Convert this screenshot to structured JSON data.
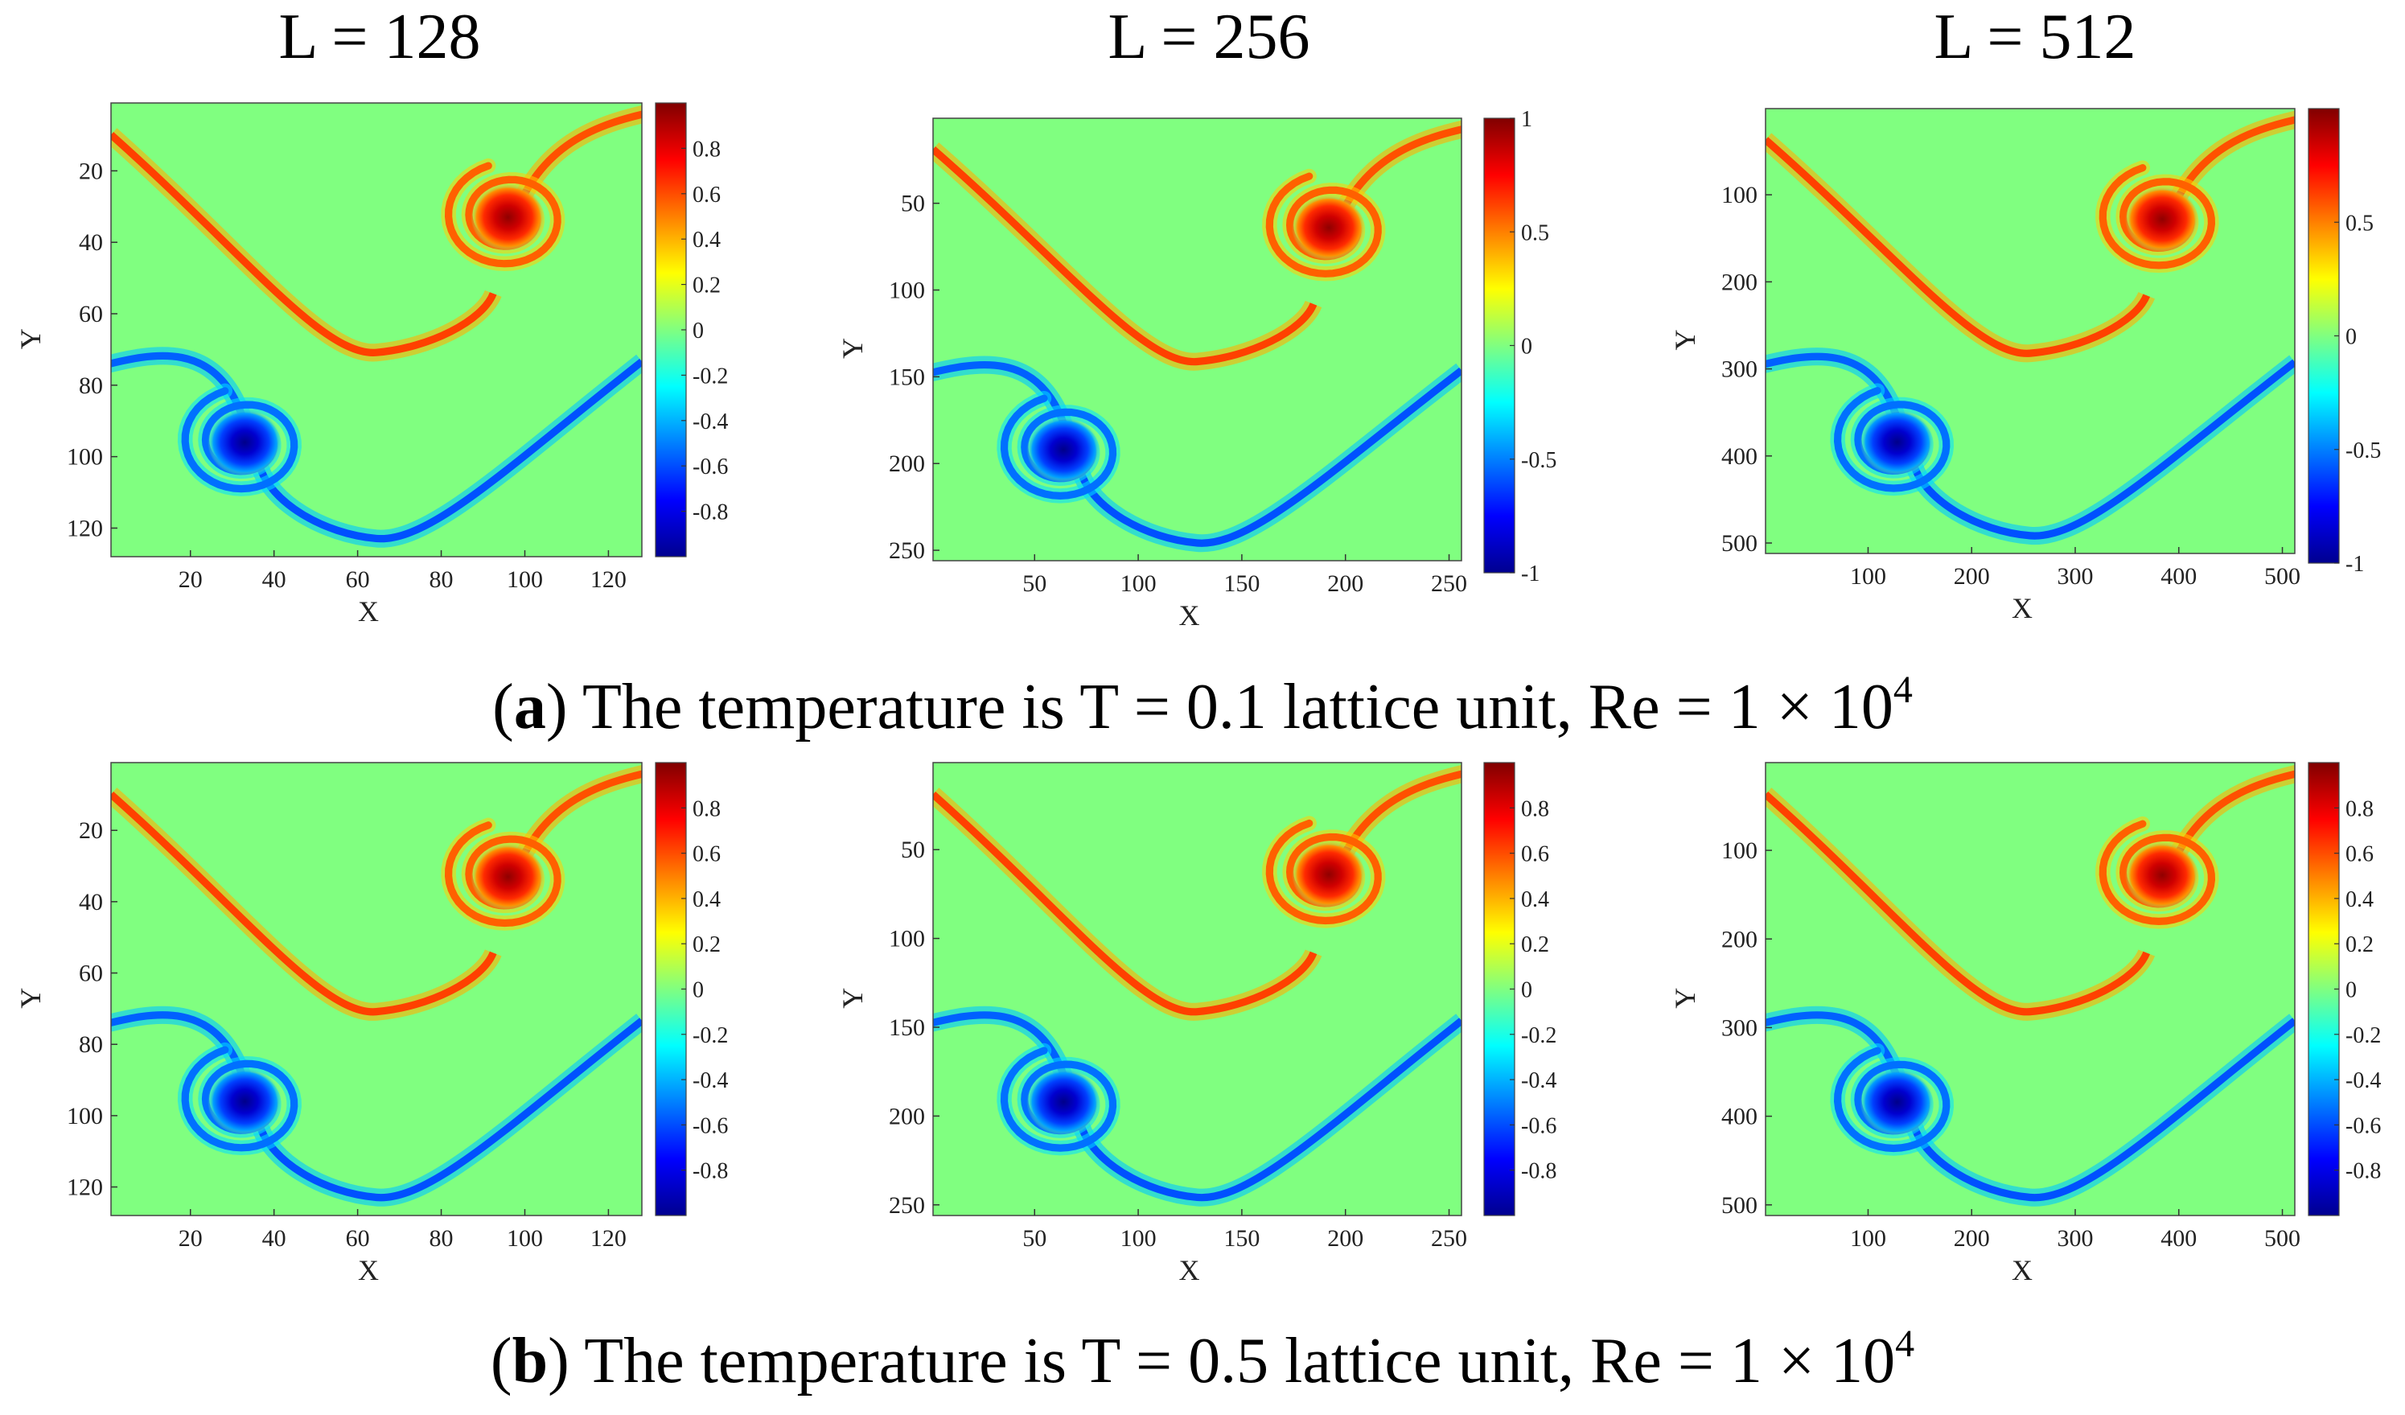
{
  "figure": {
    "column_headers": [
      "L = 128",
      "L = 256",
      "L = 512"
    ],
    "rows": [
      {
        "label": "a",
        "text": "The temperature is T = 0.1 lattice unit, Re = 1 × 10",
        "exponent": "4"
      },
      {
        "label": "b",
        "text": "The temperature is T = 0.5 lattice unit, Re = 1 × 10",
        "exponent": "4"
      }
    ]
  },
  "colors": {
    "background_field": "#80ff80",
    "colormap": [
      "#00008f",
      "#0000ff",
      "#00ffff",
      "#80ff80",
      "#ffff00",
      "#ff0000",
      "#800000"
    ]
  },
  "chart_data": [
    {
      "type": "heatmap",
      "panel": "a-128",
      "xlabel": "X",
      "ylabel": "Y",
      "xlim": [
        1,
        128
      ],
      "ylim": [
        1,
        128
      ],
      "xticks": [
        "20",
        "40",
        "60",
        "80",
        "100",
        "120"
      ],
      "yticks": [
        "20",
        "40",
        "60",
        "80",
        "100",
        "120"
      ],
      "clim": [
        -1,
        1
      ],
      "colorbar_ticks": [
        "0.8",
        "0.6",
        "0.4",
        "0.2",
        "0",
        "-0.2",
        "-0.4",
        "-0.6",
        "-0.8"
      ],
      "colorbar_values": [
        0.8,
        0.6,
        0.4,
        0.2,
        0,
        -0.2,
        -0.4,
        -0.6,
        -0.8
      ],
      "field": "vorticity-like scalar: positive vortex core near (96,33), negative vortex core near (33,96), spiral arms joined by thin shear layers",
      "pos_core": [
        96,
        33
      ],
      "neg_core": [
        33,
        96
      ],
      "peak": 0.9
    },
    {
      "type": "heatmap",
      "panel": "a-256",
      "xlabel": "X",
      "ylabel": "Y",
      "xlim": [
        1,
        256
      ],
      "ylim": [
        1,
        256
      ],
      "xticks": [
        "50",
        "100",
        "150",
        "200",
        "250"
      ],
      "yticks": [
        "50",
        "100",
        "150",
        "200",
        "250"
      ],
      "clim": [
        -1,
        1
      ],
      "colorbar_ticks": [
        "1",
        "0.5",
        "0",
        "-0.5",
        "-1"
      ],
      "colorbar_values": [
        1,
        0.5,
        0,
        -0.5,
        -1
      ],
      "pos_core": [
        192,
        64
      ],
      "neg_core": [
        64,
        192
      ],
      "peak": 0.95
    },
    {
      "type": "heatmap",
      "panel": "a-512",
      "xlabel": "X",
      "ylabel": "Y",
      "xlim": [
        1,
        512
      ],
      "ylim": [
        1,
        512
      ],
      "xticks": [
        "100",
        "200",
        "300",
        "400",
        "500"
      ],
      "yticks": [
        "100",
        "200",
        "300",
        "400",
        "500"
      ],
      "clim": [
        -1,
        1
      ],
      "colorbar_ticks": [
        "0.5",
        "0",
        "-0.5",
        "-1"
      ],
      "colorbar_values": [
        0.5,
        0,
        -0.5,
        -1
      ],
      "pos_core": [
        384,
        128
      ],
      "neg_core": [
        128,
        384
      ],
      "peak": 0.95
    },
    {
      "type": "heatmap",
      "panel": "b-128",
      "xlabel": "X",
      "ylabel": "Y",
      "xlim": [
        1,
        128
      ],
      "ylim": [
        1,
        128
      ],
      "xticks": [
        "20",
        "40",
        "60",
        "80",
        "100",
        "120"
      ],
      "yticks": [
        "20",
        "40",
        "60",
        "80",
        "100",
        "120"
      ],
      "clim": [
        -1,
        1
      ],
      "colorbar_ticks": [
        "0.8",
        "0.6",
        "0.4",
        "0.2",
        "0",
        "-0.2",
        "-0.4",
        "-0.6",
        "-0.8"
      ],
      "colorbar_values": [
        0.8,
        0.6,
        0.4,
        0.2,
        0,
        -0.2,
        -0.4,
        -0.6,
        -0.8
      ],
      "pos_core": [
        96,
        33
      ],
      "neg_core": [
        33,
        96
      ],
      "peak": 0.9
    },
    {
      "type": "heatmap",
      "panel": "b-256",
      "xlabel": "X",
      "ylabel": "Y",
      "xlim": [
        1,
        256
      ],
      "ylim": [
        1,
        256
      ],
      "xticks": [
        "50",
        "100",
        "150",
        "200",
        "250"
      ],
      "yticks": [
        "50",
        "100",
        "150",
        "200",
        "250"
      ],
      "clim": [
        -1,
        1
      ],
      "colorbar_ticks": [
        "0.8",
        "0.6",
        "0.4",
        "0.2",
        "0",
        "-0.2",
        "-0.4",
        "-0.6",
        "-0.8"
      ],
      "colorbar_values": [
        0.8,
        0.6,
        0.4,
        0.2,
        0,
        -0.2,
        -0.4,
        -0.6,
        -0.8
      ],
      "pos_core": [
        192,
        64
      ],
      "neg_core": [
        64,
        192
      ],
      "peak": 0.9
    },
    {
      "type": "heatmap",
      "panel": "b-512",
      "xlabel": "X",
      "ylabel": "Y",
      "xlim": [
        1,
        512
      ],
      "ylim": [
        1,
        512
      ],
      "xticks": [
        "100",
        "200",
        "300",
        "400",
        "500"
      ],
      "yticks": [
        "100",
        "200",
        "300",
        "400",
        "500"
      ],
      "clim": [
        -1,
        1
      ],
      "colorbar_ticks": [
        "0.8",
        "0.6",
        "0.4",
        "0.2",
        "0",
        "-0.2",
        "-0.4",
        "-0.6",
        "-0.8"
      ],
      "colorbar_values": [
        0.8,
        0.6,
        0.4,
        0.2,
        0,
        -0.2,
        -0.4,
        -0.6,
        -0.8
      ],
      "pos_core": [
        384,
        128
      ],
      "neg_core": [
        128,
        384
      ],
      "peak": 0.9
    }
  ]
}
